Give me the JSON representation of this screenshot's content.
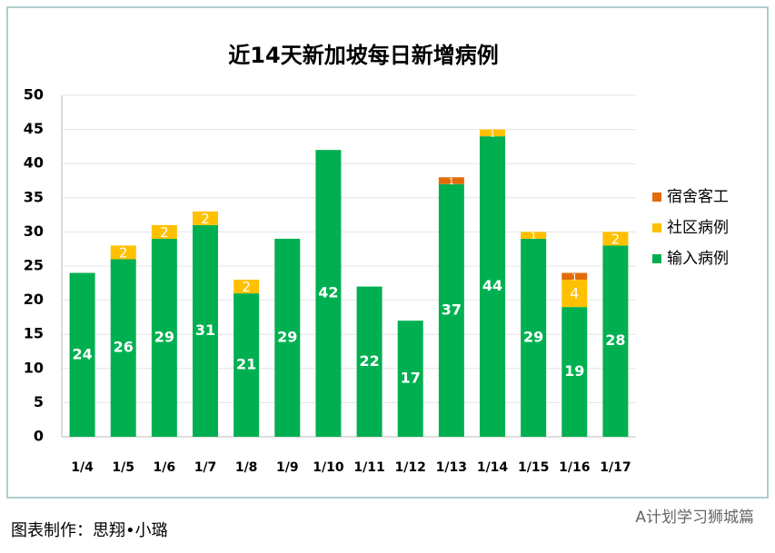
{
  "chart_data": {
    "type": "bar",
    "stacked": true,
    "title": "近14天新加坡每日新增病例",
    "categories": [
      "1/4",
      "1/5",
      "1/6",
      "1/7",
      "1/8",
      "1/9",
      "1/10",
      "1/11",
      "1/12",
      "1/13",
      "1/14",
      "1/15",
      "1/16",
      "1/17"
    ],
    "series": [
      {
        "name": "输入病例",
        "color": "#00b050",
        "values": [
          24,
          26,
          29,
          31,
          21,
          29,
          42,
          22,
          17,
          37,
          44,
          29,
          19,
          28
        ]
      },
      {
        "name": "社区病例",
        "color": "#ffc000",
        "values": [
          0,
          2,
          2,
          2,
          2,
          0,
          0,
          0,
          0,
          0,
          1,
          1,
          4,
          2
        ]
      },
      {
        "name": "宿舍客工",
        "color": "#e36c09",
        "values": [
          0,
          0,
          0,
          0,
          0,
          0,
          0,
          0,
          0,
          1,
          0,
          0,
          1,
          0
        ]
      }
    ],
    "ylim": [
      0,
      50
    ],
    "yticks": [
      0,
      5,
      10,
      15,
      20,
      25,
      30,
      35,
      40,
      45,
      50
    ],
    "grid": true,
    "legend": "right"
  },
  "footer": {
    "credit": "图表制作：思翔•小璐",
    "watermark": "A计划学习狮城篇"
  }
}
